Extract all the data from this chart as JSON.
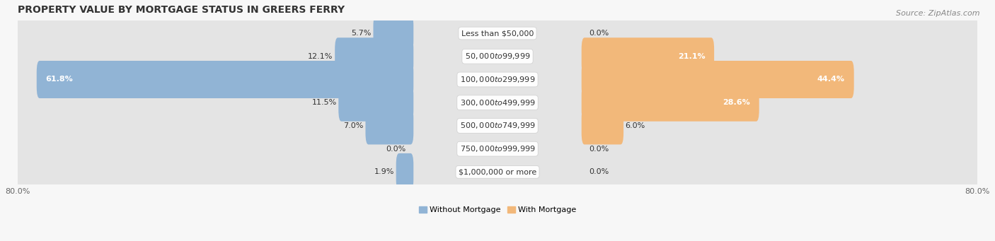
{
  "title": "PROPERTY VALUE BY MORTGAGE STATUS IN GREERS FERRY",
  "source": "Source: ZipAtlas.com",
  "categories": [
    "Less than $50,000",
    "$50,000 to $99,999",
    "$100,000 to $299,999",
    "$300,000 to $499,999",
    "$500,000 to $749,999",
    "$750,000 to $999,999",
    "$1,000,000 or more"
  ],
  "without_mortgage": [
    5.7,
    12.1,
    61.8,
    11.5,
    7.0,
    0.0,
    1.9
  ],
  "with_mortgage": [
    0.0,
    21.1,
    44.4,
    28.6,
    6.0,
    0.0,
    0.0
  ],
  "color_without": "#91b4d5",
  "color_with": "#f2b87a",
  "xlim_left": -80,
  "xlim_right": 80,
  "title_fontsize": 10,
  "source_fontsize": 8,
  "label_fontsize": 8,
  "category_fontsize": 8,
  "tick_fontsize": 8,
  "fig_bg": "#f7f7f7",
  "row_bg": "#e4e4e4",
  "row_bg_alt": "#ebebeb",
  "white_label_threshold": 20
}
